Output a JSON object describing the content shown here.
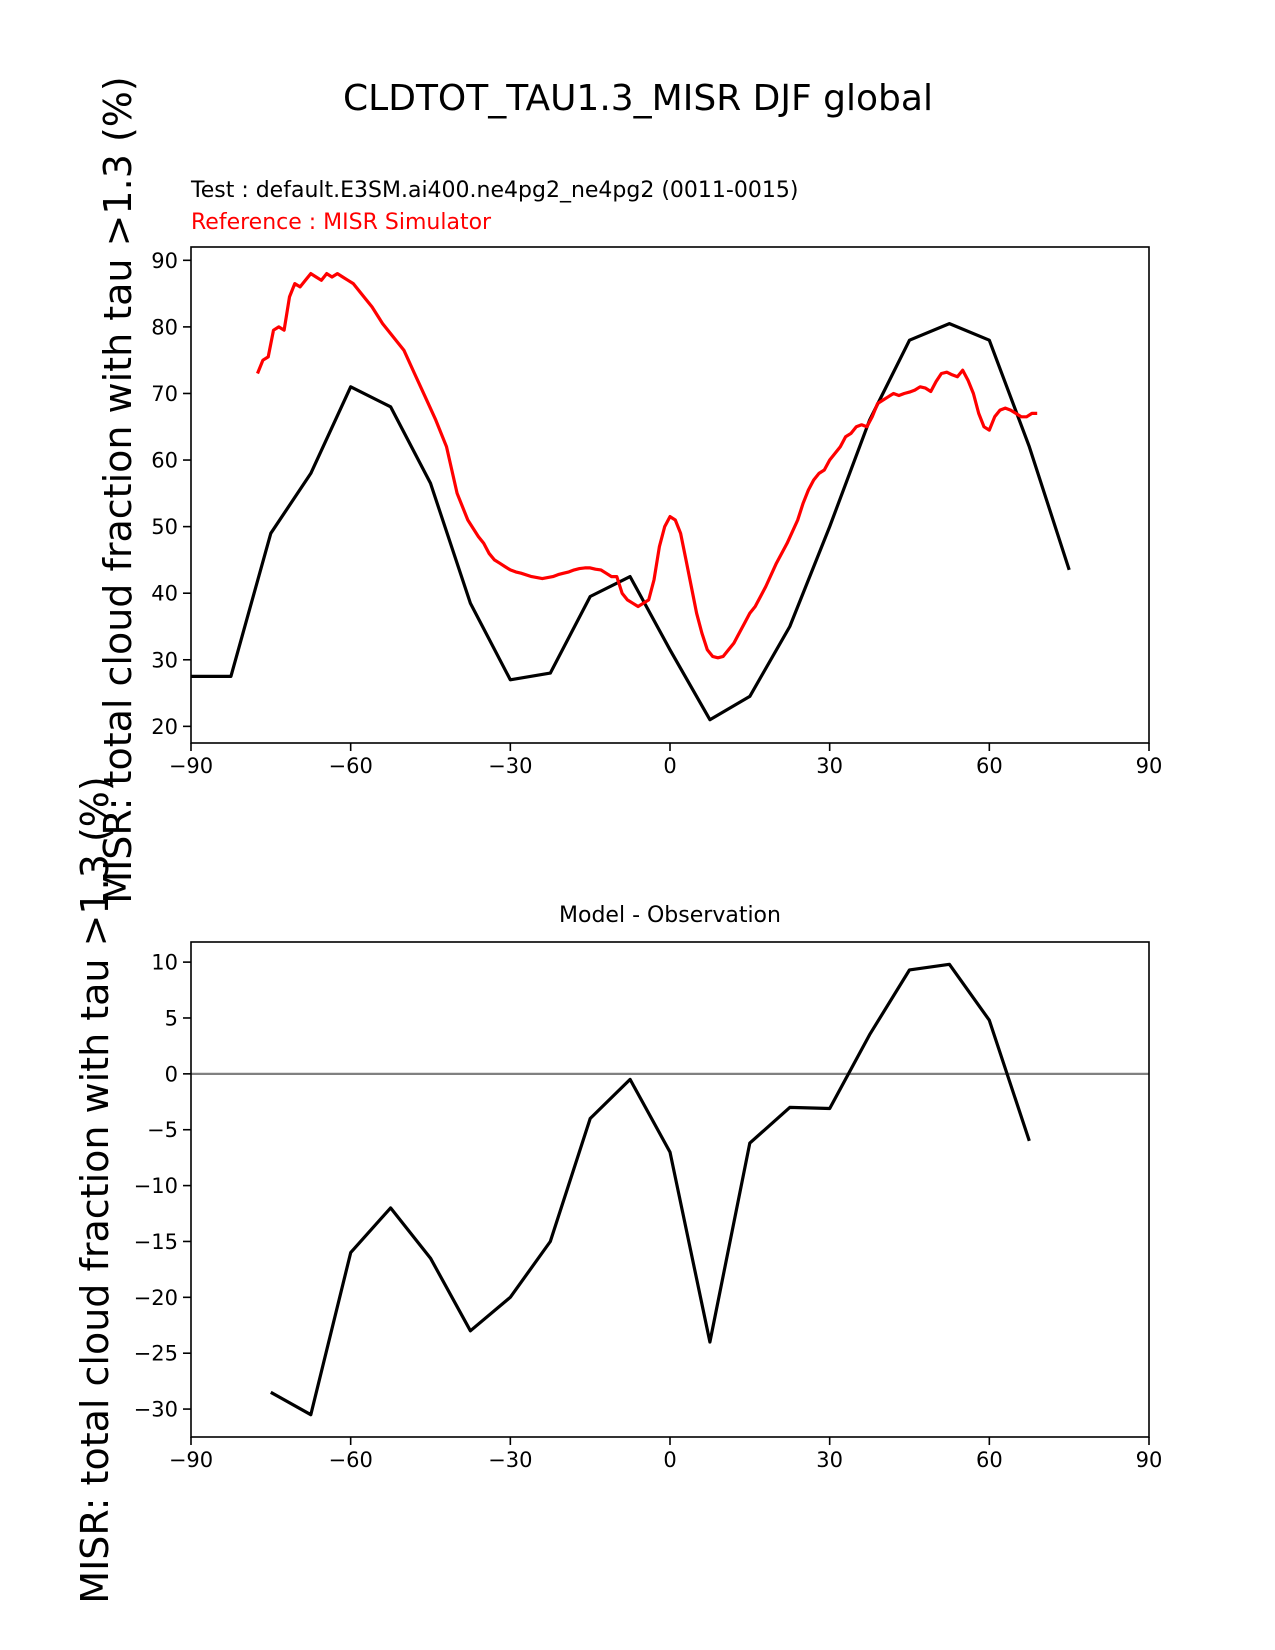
{
  "title": "CLDTOT_TAU1.3_MISR DJF global",
  "colors": {
    "test": "#000000",
    "reference": "#ff0000",
    "zero_line": "#808080"
  },
  "chart_data": [
    {
      "type": "line",
      "id": "top",
      "test_label": "Test : default.E3SM.ai400.ne4pg2_ne4pg2 (0011-0015)",
      "reference_label": "Reference : MISR Simulator",
      "ylabel": "MISR: total cloud fraction with tau >1.3 (%)",
      "xlim": [
        -90,
        90
      ],
      "ylim": [
        17.5,
        92
      ],
      "xticks": [
        -90,
        -60,
        -30,
        0,
        30,
        60,
        90
      ],
      "xtick_labels": [
        "−90",
        "−60",
        "−30",
        "0",
        "30",
        "60",
        "90"
      ],
      "yticks": [
        20,
        30,
        40,
        50,
        60,
        70,
        80,
        90
      ],
      "ytick_labels": [
        "20",
        "30",
        "40",
        "50",
        "60",
        "70",
        "80",
        "90"
      ],
      "series": [
        {
          "role": "test",
          "x": [
            -90,
            -82.5,
            -75,
            -67.5,
            -60,
            -52.5,
            -45,
            -37.5,
            -30,
            -22.5,
            -15,
            -7.5,
            0,
            7.5,
            15,
            22.5,
            30,
            37.5,
            45,
            52.5,
            60,
            67.5,
            75
          ],
          "y": [
            27.5,
            27.5,
            49,
            58,
            71,
            68,
            56.5,
            38.5,
            27,
            28,
            39.5,
            42.5,
            31.5,
            21,
            24.5,
            35,
            50,
            66,
            78,
            80.5,
            78,
            62,
            43.5
          ]
        },
        {
          "role": "reference",
          "x": [
            -77.5,
            -76.5,
            -75.5,
            -74.5,
            -73.5,
            -72.5,
            -71.5,
            -70.5,
            -69.5,
            -68.5,
            -67.5,
            -66.5,
            -65.5,
            -64.5,
            -63.5,
            -62.5,
            -61.5,
            -60.5,
            -59.5,
            -58,
            -56,
            -54,
            -52,
            -50,
            -48,
            -46,
            -44,
            -42,
            -40,
            -38,
            -36,
            -35,
            -34,
            -33,
            -32,
            -31,
            -30,
            -29,
            -28,
            -26,
            -24,
            -22,
            -21,
            -20,
            -19,
            -18,
            -17,
            -16,
            -15,
            -14,
            -13,
            -12,
            -11,
            -10,
            -9,
            -8,
            -7,
            -6,
            -5,
            -4,
            -3,
            -2,
            -1,
            0,
            1,
            2,
            3,
            4,
            5,
            6,
            7,
            8,
            9,
            10,
            11,
            12,
            13,
            14,
            15,
            16,
            18,
            20,
            22,
            24,
            25,
            26,
            27,
            28,
            29,
            30,
            31,
            32,
            33,
            34,
            35,
            36,
            37,
            38,
            39,
            40,
            41,
            42,
            43,
            44,
            45,
            46,
            47,
            48,
            49,
            50,
            51,
            52,
            53,
            54,
            55,
            56,
            57,
            58,
            59,
            60,
            61,
            62,
            63,
            64,
            65,
            66,
            67,
            68,
            69
          ],
          "y": [
            73,
            75,
            75.5,
            79.5,
            80,
            79.5,
            84.5,
            86.5,
            86,
            87,
            88,
            87.5,
            87,
            88,
            87.5,
            88,
            87.5,
            87,
            86.5,
            85,
            83,
            80.5,
            78.5,
            76.5,
            73,
            69.5,
            66,
            62,
            55,
            51,
            48.5,
            47.5,
            46,
            45,
            44.5,
            44,
            43.5,
            43.2,
            43,
            42.5,
            42.2,
            42.5,
            42.8,
            43,
            43.2,
            43.5,
            43.7,
            43.8,
            43.8,
            43.6,
            43.5,
            43,
            42.5,
            42.5,
            40,
            39,
            38.5,
            38,
            38.5,
            39,
            42,
            47,
            50,
            51.5,
            51,
            49,
            45,
            41,
            37,
            34,
            31.5,
            30.5,
            30.3,
            30.5,
            31.5,
            32.5,
            34,
            35.5,
            37,
            38,
            41,
            44.5,
            47.5,
            51,
            53.5,
            55.5,
            57,
            58,
            58.5,
            60,
            61,
            62,
            63.5,
            64,
            65,
            65.3,
            65,
            66.5,
            68.5,
            69,
            69.5,
            70,
            69.7,
            70,
            70.2,
            70.5,
            71,
            70.8,
            70.3,
            71.8,
            73,
            73.2,
            72.8,
            72.5,
            73.5,
            72,
            70,
            67,
            65,
            64.5,
            66.5,
            67.5,
            67.8,
            67.5,
            67,
            66.5,
            66.5,
            67,
            67
          ],
          "_note": ""
        }
      ]
    },
    {
      "type": "line",
      "id": "bottom",
      "title": "Model - Observation",
      "ylabel": "MISR: total cloud fraction with tau >1.3 (%)",
      "xlim": [
        -90,
        90
      ],
      "ylim": [
        -32.5,
        11.8
      ],
      "xticks": [
        -90,
        -60,
        -30,
        0,
        30,
        60,
        90
      ],
      "xtick_labels": [
        "−90",
        "−60",
        "−30",
        "0",
        "30",
        "60",
        "90"
      ],
      "yticks": [
        10,
        5,
        0,
        -5,
        -10,
        -15,
        -20,
        -25,
        -30
      ],
      "ytick_labels": [
        "10",
        "5",
        "0",
        "−5",
        "−10",
        "−15",
        "−20",
        "−25",
        "−30"
      ],
      "zero_line": 0,
      "series": [
        {
          "role": "difference",
          "x": [
            -75,
            -67.5,
            -60,
            -52.5,
            -45,
            -37.5,
            -30,
            -22.5,
            -15,
            -7.5,
            0,
            7.5,
            15,
            22.5,
            30,
            37.5,
            45,
            52.5,
            60,
            67.5
          ],
          "y": [
            -28.5,
            -30.5,
            -16,
            -12,
            -16.5,
            -23,
            -20,
            -15,
            -4,
            -0.5,
            -7,
            -24,
            -6.2,
            -3,
            -3.1,
            3.5,
            9.3,
            9.8,
            4.8,
            -6
          ]
        }
      ]
    }
  ]
}
